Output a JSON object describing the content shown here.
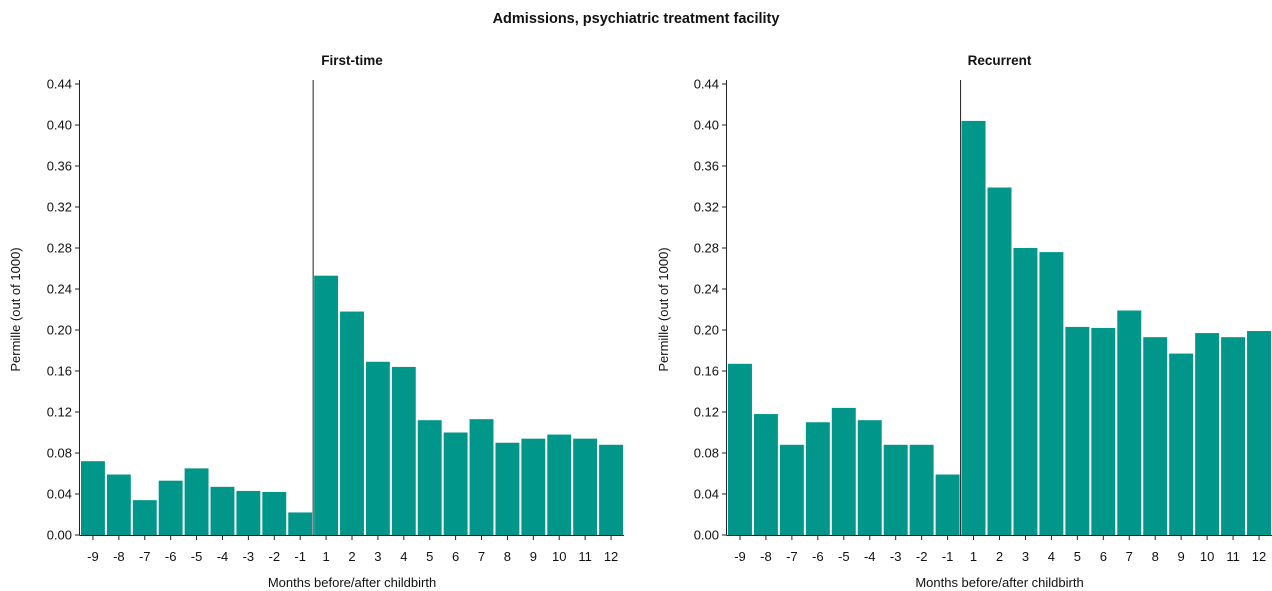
{
  "title": "Admissions, psychiatric treatment facility",
  "colors": {
    "bar": "#00968a",
    "axis": "#222222"
  },
  "chart_data": [
    {
      "type": "bar",
      "subtitle": "First-time",
      "xlabel": "Months before/after childbirth",
      "ylabel": "Permille (out of 1000)",
      "ylim": [
        0,
        0.44
      ],
      "yticks": [
        "0.00",
        "0.04",
        "0.08",
        "0.12",
        "0.16",
        "0.20",
        "0.24",
        "0.28",
        "0.32",
        "0.36",
        "0.40",
        "0.44"
      ],
      "categories": [
        "-9",
        "-8",
        "-7",
        "-6",
        "-5",
        "-4",
        "-3",
        "-2",
        "-1",
        "1",
        "2",
        "3",
        "4",
        "5",
        "6",
        "7",
        "8",
        "9",
        "10",
        "11",
        "12"
      ],
      "values": [
        0.072,
        0.059,
        0.034,
        0.053,
        0.065,
        0.047,
        0.043,
        0.042,
        0.022,
        0.253,
        0.218,
        0.169,
        0.164,
        0.112,
        0.1,
        0.113,
        0.09,
        0.094,
        0.098,
        0.094,
        0.088
      ],
      "childbirth_line_between": [
        "-1",
        "1"
      ]
    },
    {
      "type": "bar",
      "subtitle": "Recurrent",
      "xlabel": "Months before/after childbirth",
      "ylabel": "Permille (out of 1000)",
      "ylim": [
        0,
        0.44
      ],
      "yticks": [
        "0.00",
        "0.04",
        "0.08",
        "0.12",
        "0.16",
        "0.20",
        "0.24",
        "0.28",
        "0.32",
        "0.36",
        "0.40",
        "0.44"
      ],
      "categories": [
        "-9",
        "-8",
        "-7",
        "-6",
        "-5",
        "-4",
        "-3",
        "-2",
        "-1",
        "1",
        "2",
        "3",
        "4",
        "5",
        "6",
        "7",
        "8",
        "9",
        "10",
        "11",
        "12"
      ],
      "values": [
        0.167,
        0.118,
        0.088,
        0.11,
        0.124,
        0.112,
        0.088,
        0.088,
        0.059,
        0.404,
        0.339,
        0.28,
        0.276,
        0.203,
        0.202,
        0.219,
        0.193,
        0.177,
        0.197,
        0.193,
        0.199
      ],
      "childbirth_line_between": [
        "-1",
        "1"
      ]
    }
  ]
}
